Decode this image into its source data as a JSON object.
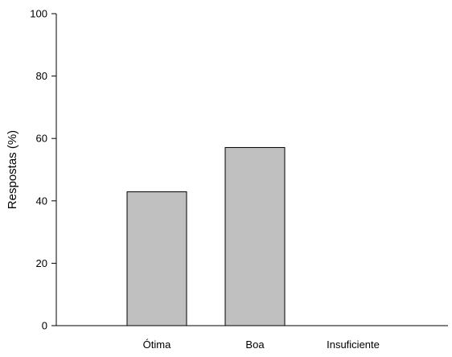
{
  "chart_data": {
    "type": "bar",
    "title": "",
    "xlabel": "",
    "ylabel": "Respostas (%)",
    "categories": [
      "Ótima",
      "Boa",
      "Insuficiente"
    ],
    "values": [
      42.9,
      57.1,
      0
    ],
    "ylim": [
      0,
      100
    ],
    "yticks": [
      0,
      20,
      40,
      60,
      80,
      100
    ],
    "grid": false,
    "legend": "none",
    "colors": {
      "bar_fill": "#c0c0c0",
      "bar_stroke": "#000000",
      "axis": "#000000"
    }
  }
}
